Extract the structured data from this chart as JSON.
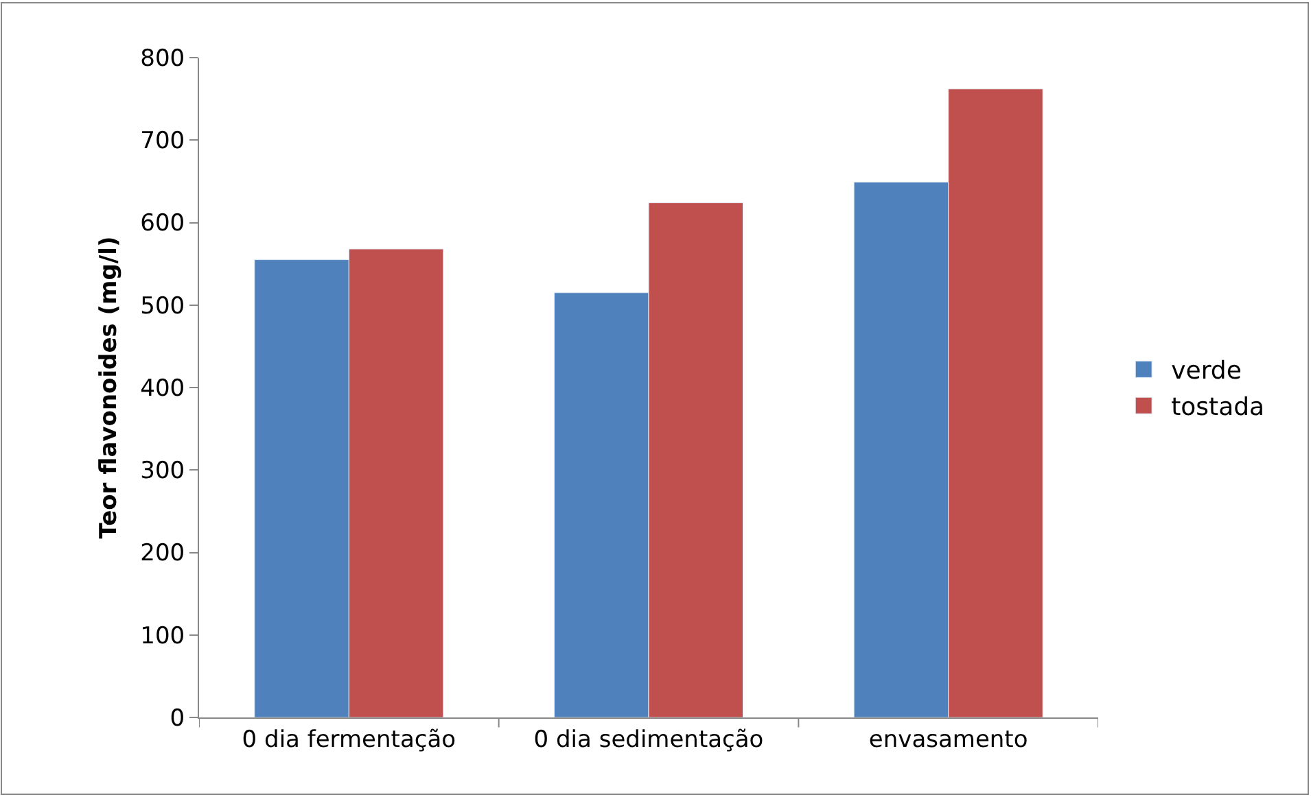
{
  "chart_data": {
    "type": "bar",
    "ylabel": "Teor flavonoides (mg/l)",
    "categories": [
      "0 dia fermentação",
      "0 dia sedimentação",
      "envasamento"
    ],
    "series": [
      {
        "name": "verde",
        "color": "#4f81bd",
        "values": [
          555,
          515,
          649
        ]
      },
      {
        "name": "tostada",
        "color": "#c0504d",
        "values": [
          568,
          624,
          762
        ]
      }
    ],
    "ylim": [
      0,
      800
    ],
    "yticks": [
      0,
      100,
      200,
      300,
      400,
      500,
      600,
      700,
      800
    ],
    "legend": "right"
  }
}
